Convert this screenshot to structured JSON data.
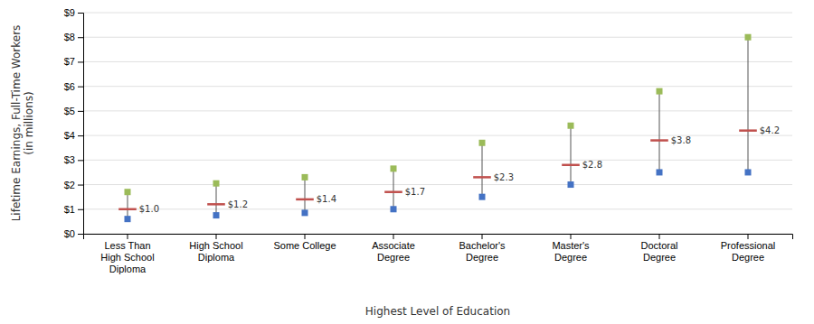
{
  "chart_data": {
    "type": "range",
    "categories": [
      "Less Than\nHigh School\nDiploma",
      "High School\nDiploma",
      "Some College",
      "Associate\nDegree",
      "Bachelor's\nDegree",
      "Master's\nDegree",
      "Doctoral\nDegree",
      "Professional\nDegree"
    ],
    "series": [
      {
        "color": "#4472C4",
        "marker": "square",
        "values": [
          0.6,
          0.75,
          0.85,
          1.0,
          1.5,
          2.0,
          2.5,
          2.5
        ]
      },
      {
        "color": "#C0504D",
        "marker": "dash",
        "values": [
          1.0,
          1.2,
          1.4,
          1.7,
          2.3,
          2.8,
          3.8,
          4.2
        ],
        "value_labels": [
          "$1.0",
          "$1.2",
          "$1.4",
          "$1.7",
          "$2.3",
          "$2.8",
          "$3.8",
          "$4.2"
        ],
        "data_labels": true
      },
      {
        "color": "#9BBB59",
        "marker": "square",
        "values": [
          1.7,
          2.05,
          2.3,
          2.65,
          3.7,
          4.4,
          5.8,
          8.0
        ]
      }
    ],
    "xlabel": "Highest Level of Education",
    "ylabel": "Lifetime Earnings, Full-Time Workers\n(in millions)",
    "ylim": [
      0,
      9
    ],
    "yticks": [
      {
        "value": 0,
        "label": "$0"
      },
      {
        "value": 1,
        "label": "$1"
      },
      {
        "value": 2,
        "label": "$2"
      },
      {
        "value": 3,
        "label": "$3"
      },
      {
        "value": 4,
        "label": "$4"
      },
      {
        "value": 5,
        "label": "$5"
      },
      {
        "value": 6,
        "label": "$6"
      },
      {
        "value": 7,
        "label": "$7"
      },
      {
        "value": 8,
        "label": "$8"
      },
      {
        "value": 9,
        "label": "$9"
      }
    ],
    "grid": true
  }
}
